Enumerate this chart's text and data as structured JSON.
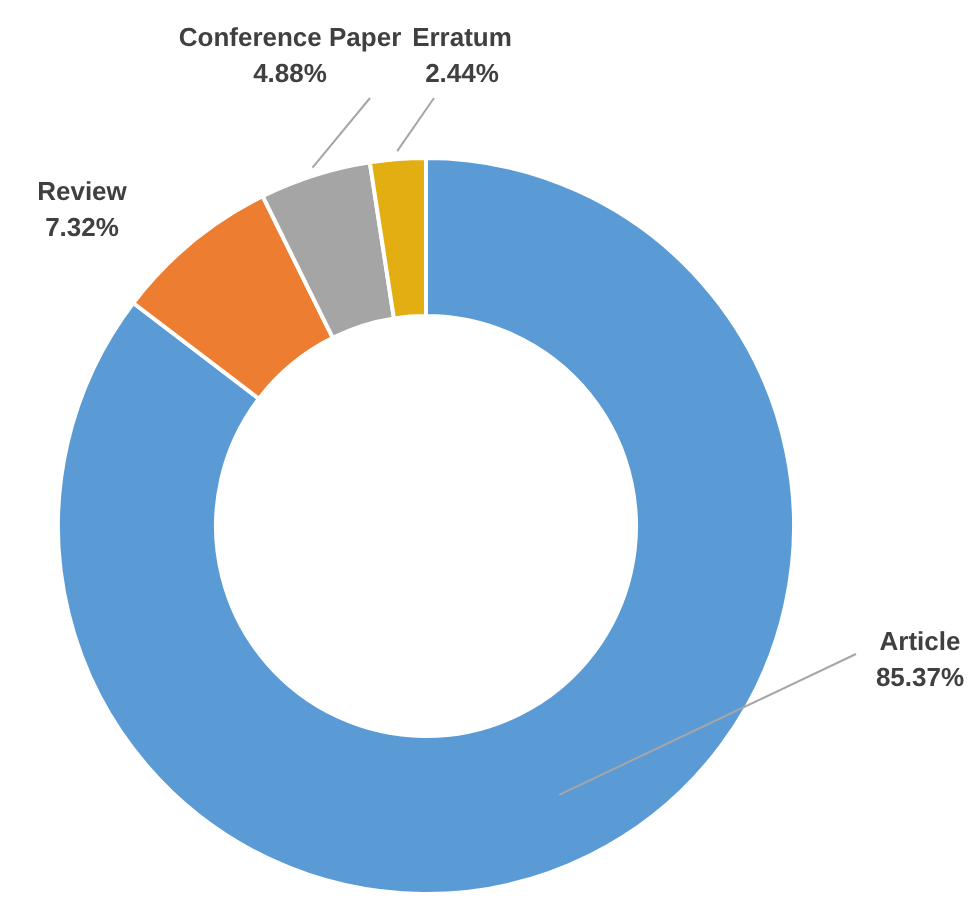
{
  "chart_data": {
    "type": "donut",
    "categories": [
      "Article",
      "Review",
      "Conference Paper",
      "Erratum"
    ],
    "values": [
      85.37,
      7.32,
      4.88,
      2.44
    ],
    "colors": [
      "#5b9bd5",
      "#ed7d31",
      "#a5a5a5",
      "#e3ae12"
    ],
    "value_labels": [
      "85.37%",
      "7.32%",
      "4.88%",
      "2.44%"
    ],
    "legend": false
  }
}
